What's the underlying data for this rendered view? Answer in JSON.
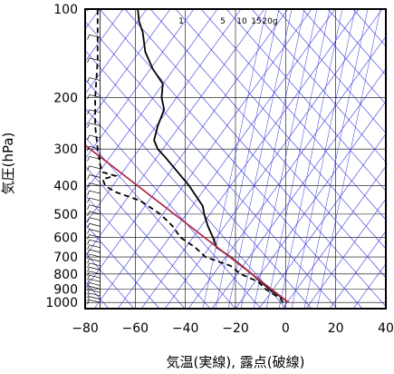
{
  "chart_data": {
    "type": "line",
    "title": "",
    "xlabel": "気温(実線), 露点(破線)",
    "ylabel": "気圧(hPa)",
    "xlim": [
      -80,
      40
    ],
    "ylim_pressure": [
      1050,
      100
    ],
    "y_scale": "log",
    "x_ticks": [
      "−80",
      "−60",
      "−40",
      "−20",
      "0",
      "20",
      "40"
    ],
    "x_tick_values": [
      -80,
      -60,
      -40,
      -20,
      0,
      20,
      40
    ],
    "y_ticks": [
      "100",
      "200",
      "300",
      "400",
      "500",
      "600",
      "700",
      "800",
      "900",
      "1000"
    ],
    "y_tick_values": [
      100,
      200,
      300,
      400,
      500,
      600,
      700,
      800,
      900,
      1000
    ],
    "mixing_ratio_labels": [
      "1",
      "5",
      "10",
      "15",
      "20g"
    ],
    "grid": true,
    "series": [
      {
        "style": "solid",
        "color": "#000000",
        "points": [
          [
            1000,
            1.2
          ],
          [
            970,
            -1.0
          ],
          [
            925,
            -4.5
          ],
          [
            900,
            -6.5
          ],
          [
            850,
            -10.0
          ],
          [
            800,
            -13.5
          ],
          [
            750,
            -17.5
          ],
          [
            700,
            -22.0
          ],
          [
            650,
            -27.5
          ],
          [
            600,
            -29.0
          ],
          [
            550,
            -31.0
          ],
          [
            500,
            -32.5
          ],
          [
            470,
            -33.0
          ],
          [
            450,
            -34.5
          ],
          [
            400,
            -38.5
          ],
          [
            360,
            -43.0
          ],
          [
            320,
            -48.0
          ],
          [
            300,
            -51.0
          ],
          [
            280,
            -52.5
          ],
          [
            250,
            -51.0
          ],
          [
            220,
            -48.5
          ],
          [
            200,
            -49.5
          ],
          [
            180,
            -49.0
          ],
          [
            160,
            -53.0
          ],
          [
            140,
            -56.0
          ],
          [
            120,
            -57.0
          ],
          [
            110,
            -58.5
          ],
          [
            100,
            -59.0
          ]
        ]
      },
      {
        "style": "dashed",
        "color": "#000000",
        "points": [
          [
            1000,
            -1.0
          ],
          [
            970,
            -2.0
          ],
          [
            925,
            -6.0
          ],
          [
            900,
            -8.0
          ],
          [
            850,
            -11.0
          ],
          [
            800,
            -18.0
          ],
          [
            750,
            -22.0
          ],
          [
            700,
            -32.0
          ],
          [
            650,
            -36.0
          ],
          [
            600,
            -42.0
          ],
          [
            550,
            -45.0
          ],
          [
            500,
            -50.0
          ],
          [
            450,
            -58.0
          ],
          [
            420,
            -68.0
          ],
          [
            400,
            -72.0
          ],
          [
            380,
            -73.0
          ],
          [
            370,
            -68.0
          ],
          [
            360,
            -73.0
          ],
          [
            340,
            -74.0
          ],
          [
            300,
            -75.0
          ],
          [
            250,
            -76.0
          ],
          [
            200,
            -76.0
          ],
          [
            150,
            -75.0
          ],
          [
            100,
            -75.0
          ]
        ]
      },
      {
        "style": "solid",
        "color": "#b03050",
        "points": [
          [
            1000,
            1.2
          ],
          [
            250,
            -90.0
          ]
        ]
      }
    ],
    "colors": {
      "skew_lines": "#3333dd",
      "grid": "#000000",
      "frame": "#000000",
      "parcel_line": "#b03050",
      "wind_ticks": "#000000"
    },
    "wind_barbs": {
      "x_value": -74,
      "levels": [
        1000,
        975,
        950,
        925,
        900,
        875,
        850,
        825,
        800,
        775,
        750,
        725,
        700,
        675,
        650,
        625,
        600,
        575,
        550,
        525,
        500,
        475,
        450,
        425,
        400,
        375,
        350,
        325,
        300,
        275,
        250,
        225,
        200,
        175,
        150,
        125,
        100
      ]
    }
  }
}
